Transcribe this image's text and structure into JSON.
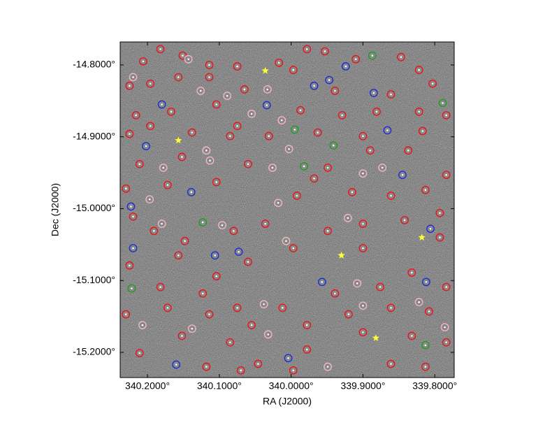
{
  "chart_data": {
    "type": "scatter",
    "x_label": "RA (J2000)",
    "y_label": "Dec (J2000)",
    "xlim": [
      340.238,
      339.773
    ],
    "ylim": [
      -15.235,
      -14.768
    ],
    "xticks": [
      {
        "value": 340.2,
        "label": "340.2000°"
      },
      {
        "value": 340.1,
        "label": "340.1000°"
      },
      {
        "value": 340.0,
        "label": "340.0000°"
      },
      {
        "value": 339.9,
        "label": "339.9000°"
      },
      {
        "value": 339.8,
        "label": "339.8000°"
      }
    ],
    "yticks": [
      {
        "value": -14.8,
        "label": "-14.8000°"
      },
      {
        "value": -14.9,
        "label": "-14.9000°"
      },
      {
        "value": -15.0,
        "label": "-15.0000°"
      },
      {
        "value": -15.1,
        "label": "-15.1000°"
      },
      {
        "value": -15.2,
        "label": "-15.2000°"
      }
    ],
    "grid": false,
    "background": "sky-image",
    "series": [
      {
        "color": "#e8141a",
        "marker": "circle",
        "x": [
          340.206,
          340.182,
          340.151,
          340.114,
          340.075,
          340.017,
          339.978,
          339.953,
          339.91,
          339.847,
          339.822,
          340.225,
          340.196,
          340.157,
          340.114,
          340.065,
          339.997,
          339.939,
          339.861,
          339.803,
          340.216,
          340.167,
          340.104,
          340.075,
          339.987,
          339.929,
          339.881,
          339.822,
          339.784,
          340.225,
          340.196,
          340.138,
          340.085,
          340.031,
          339.963,
          339.9,
          339.817,
          340.211,
          340.152,
          340.06,
          339.949,
          339.89,
          339.837,
          339.784,
          340.23,
          340.172,
          340.104,
          339.992,
          339.968,
          339.915,
          339.861,
          339.813,
          340.22,
          340.191,
          340.148,
          340.08,
          340.036,
          339.949,
          339.9,
          339.842,
          339.793,
          340.225,
          340.157,
          340.104,
          340.06,
          339.997,
          339.9,
          339.832,
          339.793,
          340.182,
          340.123,
          340.075,
          340.012,
          339.939,
          339.876,
          339.784,
          340.23,
          340.172,
          340.114,
          340.055,
          339.978,
          339.92,
          339.861,
          339.808,
          340.211,
          340.152,
          340.085,
          340.046,
          339.978,
          339.9,
          339.832,
          339.784,
          340.118,
          340.07,
          339.997,
          339.861,
          339.813
        ],
        "values": [
          -14.795,
          -14.778,
          -14.787,
          -14.8,
          -14.802,
          -14.797,
          -14.778,
          -14.781,
          -14.792,
          -14.789,
          -14.807,
          -14.829,
          -14.826,
          -14.817,
          -14.817,
          -14.834,
          -14.807,
          -14.836,
          -14.841,
          -14.826,
          -14.87,
          -14.865,
          -14.855,
          -14.885,
          -14.863,
          -14.87,
          -14.865,
          -14.865,
          -14.87,
          -14.896,
          -14.885,
          -14.894,
          -14.899,
          -14.899,
          -14.894,
          -14.899,
          -14.892,
          -14.938,
          -14.928,
          -14.938,
          -14.943,
          -14.919,
          -14.919,
          -14.953,
          -14.972,
          -14.967,
          -14.963,
          -14.982,
          -14.958,
          -14.977,
          -14.982,
          -14.974,
          -15.011,
          -15.031,
          -15.045,
          -15.031,
          -15.021,
          -15.031,
          -15.021,
          -15.016,
          -15.006,
          -15.079,
          -15.065,
          -15.094,
          -15.074,
          -15.055,
          -15.055,
          -15.089,
          -15.04,
          -15.109,
          -15.118,
          -15.138,
          -15.138,
          -15.118,
          -15.109,
          -15.109,
          -15.147,
          -15.138,
          -15.147,
          -15.162,
          -15.162,
          -15.147,
          -15.138,
          -15.143,
          -15.201,
          -15.177,
          -15.186,
          -15.216,
          -15.196,
          -15.172,
          -15.177,
          -15.186,
          -15.22,
          -15.225,
          -15.225,
          -15.216,
          -15.22
        ]
      },
      {
        "color": "#f4b6c2",
        "marker": "circle",
        "x": [
          340.143,
          340.22,
          340.126,
          340.089,
          340.055,
          340.033,
          340.013,
          340.003,
          340.118,
          340.178,
          340.113,
          340.026,
          339.9,
          339.873,
          340.197,
          340.18,
          340.096,
          340.018,
          340.007,
          339.921,
          339.908,
          339.822,
          340.038,
          340.207,
          340.138,
          339.9,
          340.032,
          339.949,
          339.786
        ],
        "values": [
          -14.792,
          -14.817,
          -14.836,
          -14.843,
          -14.868,
          -14.834,
          -14.877,
          -14.917,
          -14.919,
          -14.943,
          -14.933,
          -14.943,
          -14.951,
          -14.943,
          -14.987,
          -15.021,
          -15.023,
          -14.992,
          -15.045,
          -15.013,
          -15.104,
          -15.13,
          -15.133,
          -15.162,
          -15.167,
          -15.135,
          -15.175,
          -15.22,
          -15.165
        ]
      },
      {
        "color": "#1a2fd0",
        "marker": "circle",
        "x": [
          339.947,
          339.968,
          340.034,
          340.18,
          340.202,
          340.139,
          340.223,
          340.106,
          340.073,
          340.22,
          339.957,
          339.812,
          340.004,
          340.16,
          339.866,
          339.845,
          339.924,
          339.885,
          339.806
        ],
        "values": [
          -14.821,
          -14.829,
          -14.856,
          -14.855,
          -14.913,
          -14.977,
          -14.997,
          -15.065,
          -15.06,
          -15.055,
          -15.102,
          -15.102,
          -15.208,
          -15.217,
          -14.891,
          -14.953,
          -14.802,
          -14.839,
          -15.028
        ]
      },
      {
        "color": "#1e9e1e",
        "marker": "circle",
        "x": [
          339.887,
          339.995,
          339.941,
          339.982,
          340.123,
          340.222,
          339.813,
          339.789
        ],
        "values": [
          -14.787,
          -14.89,
          -14.912,
          -14.941,
          -15.019,
          -15.111,
          -15.19,
          -14.853
        ]
      },
      {
        "color": "#ffff33",
        "marker": "star",
        "x": [
          340.036,
          340.157,
          339.818,
          339.93,
          339.882
        ],
        "values": [
          -14.808,
          -14.905,
          -15.04,
          -15.065,
          -15.18
        ]
      }
    ]
  }
}
